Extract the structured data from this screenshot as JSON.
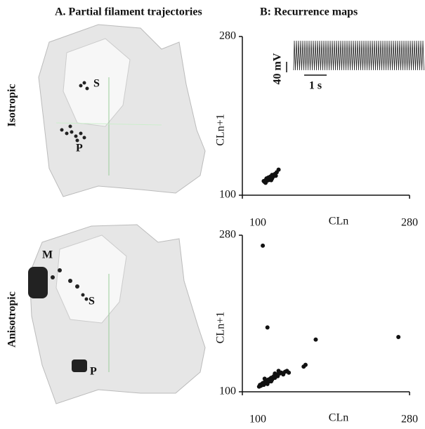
{
  "panel_a": {
    "title": "A. Partial filament trajectories",
    "rows": [
      {
        "label": "Isotropic",
        "markers": [
          "S",
          "P"
        ]
      },
      {
        "label": "Anisotropic",
        "markers": [
          "M",
          "S",
          "P"
        ]
      }
    ]
  },
  "panel_b": {
    "title": "B: Recurrence maps",
    "inset_voltage": "40 mV",
    "inset_time": "1 s"
  },
  "chart_data": [
    {
      "type": "scatter",
      "xlabel": "CLn",
      "ylabel": "CLn+1",
      "color": "#111111",
      "xlim": [
        100,
        280
      ],
      "ylim": [
        100,
        280
      ],
      "xticks": [
        100,
        280
      ],
      "yticks": [
        100,
        280
      ],
      "x": [
        123,
        124,
        125,
        126,
        127,
        128,
        129,
        130,
        131,
        132,
        133,
        134,
        126,
        128,
        130,
        132,
        135,
        137,
        139,
        136,
        125,
        131
      ],
      "y": [
        116,
        115,
        117,
        116,
        118,
        117,
        119,
        118,
        120,
        119,
        121,
        122,
        119,
        120,
        121,
        123,
        124,
        126,
        129,
        122,
        114,
        117
      ]
    },
    {
      "type": "scatter",
      "xlabel": "CLn",
      "ylabel": "CLn+1",
      "color": "#111111",
      "xlim": [
        100,
        280
      ],
      "ylim": [
        100,
        280
      ],
      "xticks": [
        100,
        280
      ],
      "yticks": [
        100,
        280
      ],
      "x": [
        118,
        119,
        120,
        121,
        122,
        123,
        124,
        125,
        126,
        127,
        128,
        129,
        130,
        131,
        132,
        133,
        134,
        135,
        136,
        137,
        138,
        140,
        142,
        144,
        146,
        148,
        150,
        127,
        131,
        124,
        135,
        139,
        122,
        127,
        179,
        268,
        168,
        166
      ],
      "y": [
        106,
        108,
        107,
        109,
        110,
        108,
        111,
        112,
        110,
        113,
        114,
        112,
        115,
        116,
        114,
        117,
        118,
        116,
        119,
        120,
        118,
        121,
        122,
        120,
        123,
        124,
        122,
        109,
        112,
        115,
        121,
        124,
        268,
        174,
        160,
        163,
        131,
        129
      ]
    }
  ]
}
